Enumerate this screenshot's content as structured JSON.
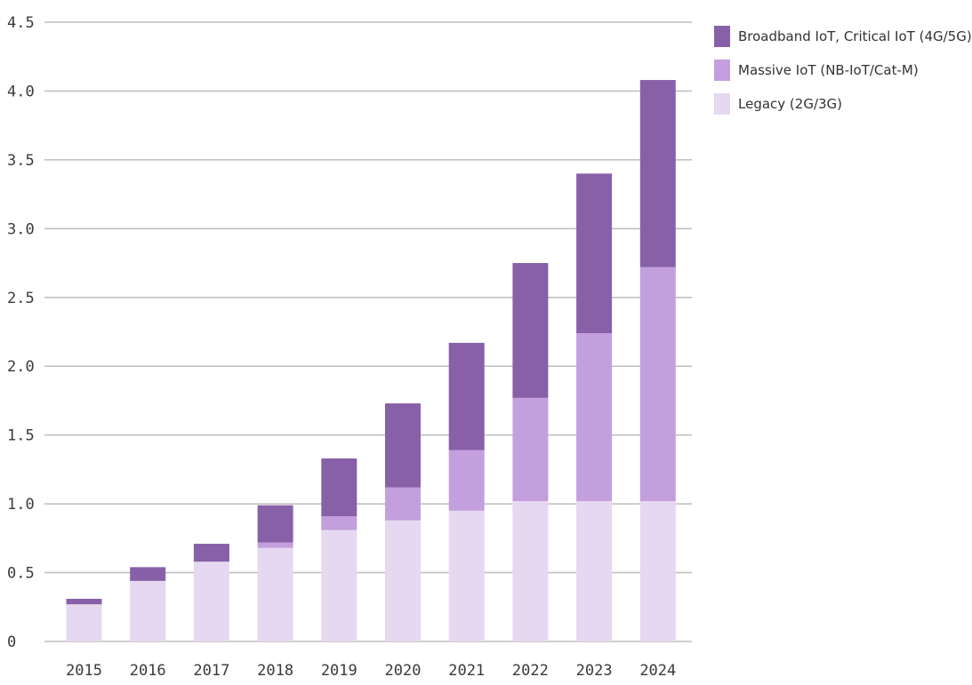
{
  "chart_data": {
    "type": "bar",
    "stacked": true,
    "title": "",
    "xlabel": "",
    "ylabel": "",
    "categories": [
      "2015",
      "2016",
      "2017",
      "2018",
      "2019",
      "2020",
      "2021",
      "2022",
      "2023",
      "2024"
    ],
    "ylim": [
      0,
      4.5
    ],
    "yticks": [
      "0",
      "0.5",
      "1.0",
      "1.5",
      "2.0",
      "2.5",
      "3.0",
      "3.5",
      "4.0",
      "4.5"
    ],
    "grid": true,
    "legend_position": "top-right",
    "series": [
      {
        "name": "Legacy (2G/3G)",
        "color": "#e6d8f0",
        "values": [
          0.27,
          0.44,
          0.58,
          0.68,
          0.81,
          0.88,
          0.95,
          1.02,
          1.02,
          1.02
        ]
      },
      {
        "name": "Massive IoT (NB-IoT/Cat-M)",
        "color": "#c39fdd",
        "values": [
          0.0,
          0.0,
          0.0,
          0.04,
          0.1,
          0.24,
          0.44,
          0.75,
          1.22,
          1.7
        ]
      },
      {
        "name": "Broadband IoT, Critical IoT (4G/5G)",
        "color": "#8860a8",
        "values": [
          0.04,
          0.1,
          0.13,
          0.27,
          0.42,
          0.61,
          0.78,
          0.98,
          1.16,
          1.36
        ]
      }
    ]
  }
}
